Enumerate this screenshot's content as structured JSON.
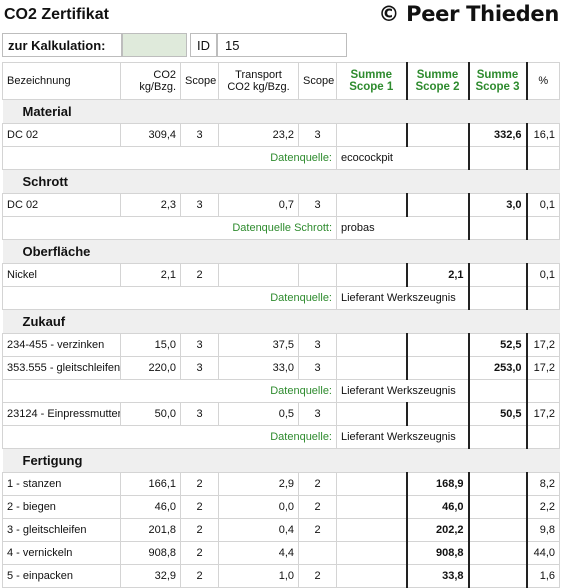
{
  "header": {
    "title": "CO2 Zertifikat",
    "brand": "© Peer Thieden"
  },
  "calc": {
    "label": "zur Kalkulation:",
    "id_label": "ID",
    "id_value": "15"
  },
  "columns": {
    "bez": "Bezeichnung",
    "co2": "CO2\nkg/Bzg.",
    "scope": "Scope",
    "transport": "Transport\nCO2 kg/Bzg.",
    "scope2": "Scope",
    "s1": "Summe\nScope 1",
    "s2": "Summe\nScope 2",
    "s3": "Summe\nScope 3",
    "pct": "%"
  },
  "sections": [
    {
      "name": "Material",
      "rows": [
        {
          "type": "data",
          "bez": "DC 02",
          "co2": "309,4",
          "scope": "3",
          "tr": "23,2",
          "tscope": "3",
          "s1": "",
          "s2": "",
          "s3": "332,6",
          "pct": "16,1"
        },
        {
          "type": "src",
          "label": "Datenquelle:",
          "value": "ecocockpit"
        }
      ]
    },
    {
      "name": "Schrott",
      "rows": [
        {
          "type": "data",
          "bez": "DC 02",
          "co2": "2,3",
          "scope": "3",
          "tr": "0,7",
          "tscope": "3",
          "s1": "",
          "s2": "",
          "s3": "3,0",
          "pct": "0,1"
        },
        {
          "type": "src",
          "label": "Datenquelle Schrott:",
          "value": "probas"
        }
      ]
    },
    {
      "name": "Oberfläche",
      "rows": [
        {
          "type": "data",
          "bez": "Nickel",
          "co2": "2,1",
          "scope": "2",
          "tr": "",
          "tscope": "",
          "s1": "",
          "s2": "2,1",
          "s3": "",
          "pct": "0,1"
        },
        {
          "type": "src",
          "label": "Datenquelle:",
          "value": "Lieferant Werkszeugnis"
        }
      ]
    },
    {
      "name": "Zukauf",
      "rows": [
        {
          "type": "data",
          "bez": "234-455 - verzinken",
          "co2": "15,0",
          "scope": "3",
          "tr": "37,5",
          "tscope": "3",
          "s1": "",
          "s2": "",
          "s3": "52,5",
          "pct": "17,2"
        },
        {
          "type": "data",
          "bez": "353.555 - gleitschleifen",
          "co2": "220,0",
          "scope": "3",
          "tr": "33,0",
          "tscope": "3",
          "s1": "",
          "s2": "",
          "s3": "253,0",
          "pct": "17,2"
        },
        {
          "type": "src",
          "label": "Datenquelle:",
          "value": "Lieferant Werkszeugnis"
        },
        {
          "type": "data",
          "bez": "23124 - Einpressmutter '",
          "co2": "50,0",
          "scope": "3",
          "tr": "0,5",
          "tscope": "3",
          "s1": "",
          "s2": "",
          "s3": "50,5",
          "pct": "17,2"
        },
        {
          "type": "src",
          "label": "Datenquelle:",
          "value": "Lieferant Werkszeugnis"
        }
      ]
    },
    {
      "name": "Fertigung",
      "rows": [
        {
          "type": "data",
          "bez": "1 - stanzen",
          "co2": "166,1",
          "scope": "2",
          "tr": "2,9",
          "tscope": "2",
          "s1": "",
          "s2": "168,9",
          "s3": "",
          "pct": "8,2"
        },
        {
          "type": "data",
          "bez": "2 - biegen",
          "co2": "46,0",
          "scope": "2",
          "tr": "0,0",
          "tscope": "2",
          "s1": "",
          "s2": "46,0",
          "s3": "",
          "pct": "2,2"
        },
        {
          "type": "data",
          "bez": "3 - gleitschleifen",
          "co2": "201,8",
          "scope": "2",
          "tr": "0,4",
          "tscope": "2",
          "s1": "",
          "s2": "202,2",
          "s3": "",
          "pct": "9,8"
        },
        {
          "type": "data",
          "bez": "4 - vernickeln",
          "co2": "908,8",
          "scope": "2",
          "tr": "4,4",
          "tscope": "",
          "s1": "",
          "s2": "908,8",
          "s3": "",
          "pct": "44,0"
        },
        {
          "type": "data",
          "bez": "5 - einpacken",
          "co2": "32,9",
          "scope": "2",
          "tr": "1,0",
          "tscope": "2",
          "s1": "",
          "s2": "33,8",
          "s3": "",
          "pct": "1,6"
        }
      ]
    }
  ],
  "colors": {
    "green": "#2e8b2e",
    "input_bg": "#dfeadb",
    "section_bg": "#efefef"
  }
}
